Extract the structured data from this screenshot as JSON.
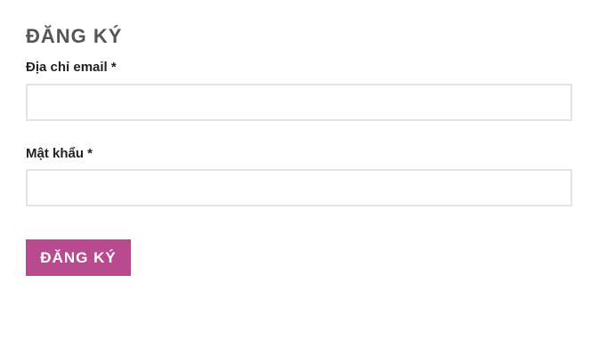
{
  "form": {
    "title": "ĐĂNG KÝ",
    "email_label": "Địa chỉ email *",
    "email_value": "",
    "password_label": "Mật khẩu *",
    "password_value": "",
    "submit_label": "ĐĂNG KÝ",
    "accent_color": "#b94a8f"
  }
}
